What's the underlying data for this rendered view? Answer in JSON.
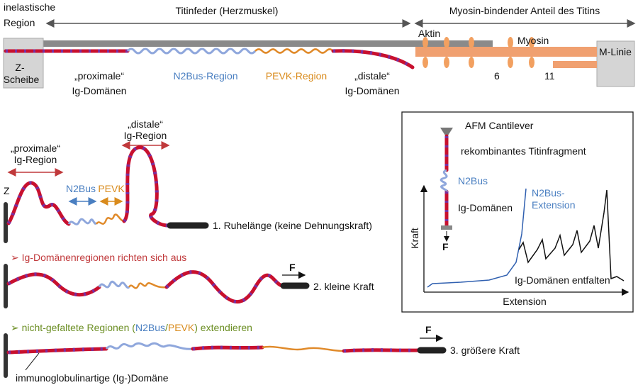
{
  "top": {
    "inelastic_region": [
      "inelastische",
      "Region"
    ],
    "titin_spring": "Titinfeder (Herzmuskel)",
    "myosin_binding": "Myosin-bindender Anteil des Titins",
    "actin": "Aktin",
    "myosin": "Myosin",
    "z_disc": [
      "Z-",
      "Scheibe"
    ],
    "m_line": "M-Linie",
    "proximal": [
      "„proximale“",
      "Ig-Domänen"
    ],
    "n2bus": "N2Bus-Region",
    "pevk": "PEVK-Region",
    "distal": [
      "„distale“",
      "Ig-Domänen"
    ],
    "repeat_1": "6",
    "repeat_2": "11"
  },
  "states": {
    "distal": [
      "„distale“",
      "Ig-Region"
    ],
    "proximal": [
      "„proximale“",
      "Ig-Region"
    ],
    "z": "Z",
    "n2bus": "N2Bus",
    "pevk": "PEVK",
    "state_1": "1. Ruhelänge (keine Dehnungskraft)",
    "step_2": "➢ Ig-Domänenregionen richten sich aus",
    "force_2": "F",
    "state_2": "2. kleine Kraft",
    "step_3": [
      "➢ nicht-gefaltete Regionen (",
      "N2Bus",
      "/",
      "PEVK",
      ") extendieren"
    ],
    "force_3": "F",
    "state_3": "3. größere Kraft",
    "ig_domain": "immunoglobulinartige (Ig-)Domäne"
  },
  "inset": {
    "cantilever": "AFM Cantilever",
    "fragment": "rekombinantes Titinfragment",
    "n2bus": "N2Bus",
    "ig_domains": "Ig-Domänen",
    "force": "F",
    "n2bus_extension": [
      "N2Bus-",
      "Extension"
    ],
    "y_axis": "Kraft",
    "x_axis": "Extension",
    "unfolding": "Ig-Domänen entfalten"
  }
}
